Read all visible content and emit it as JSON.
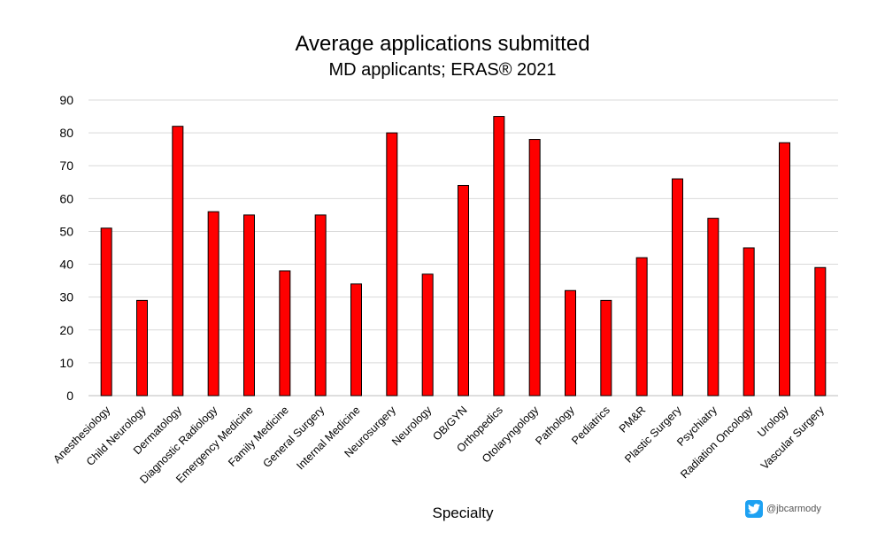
{
  "chart_data": {
    "type": "bar",
    "title": "Average applications submitted",
    "subtitle": "MD applicants; ERAS® 2021",
    "xlabel": "Specialty",
    "ylabel": "",
    "ylim": [
      0,
      90
    ],
    "yticks": [
      0,
      10,
      20,
      30,
      40,
      50,
      60,
      70,
      80,
      90
    ],
    "grid": true,
    "legend": "none",
    "bar_color": "#ff0000",
    "categories": [
      "Anesthesiology",
      "Child Neurology",
      "Dermatology",
      "Diagnostic Radiology",
      "Emergency Medicine",
      "Family Medicine",
      "General Surgery",
      "Internal Medicine",
      "Neurosurgery",
      "Neurology",
      "OB/GYN",
      "Orthopedics",
      "Otolaryngology",
      "Pathology",
      "Pediatrics",
      "PM&R",
      "Plastic Surgery",
      "Psychiatry",
      "Radiation Oncology",
      "Urology",
      "Vascular Surgery"
    ],
    "values": [
      51,
      29,
      82,
      56,
      55,
      38,
      55,
      34,
      80,
      37,
      64,
      85,
      78,
      32,
      29,
      42,
      66,
      54,
      45,
      77,
      39
    ]
  },
  "credit": {
    "icon": "twitter-icon",
    "text": "@jbcarmody",
    "color": "#1da1f2"
  }
}
